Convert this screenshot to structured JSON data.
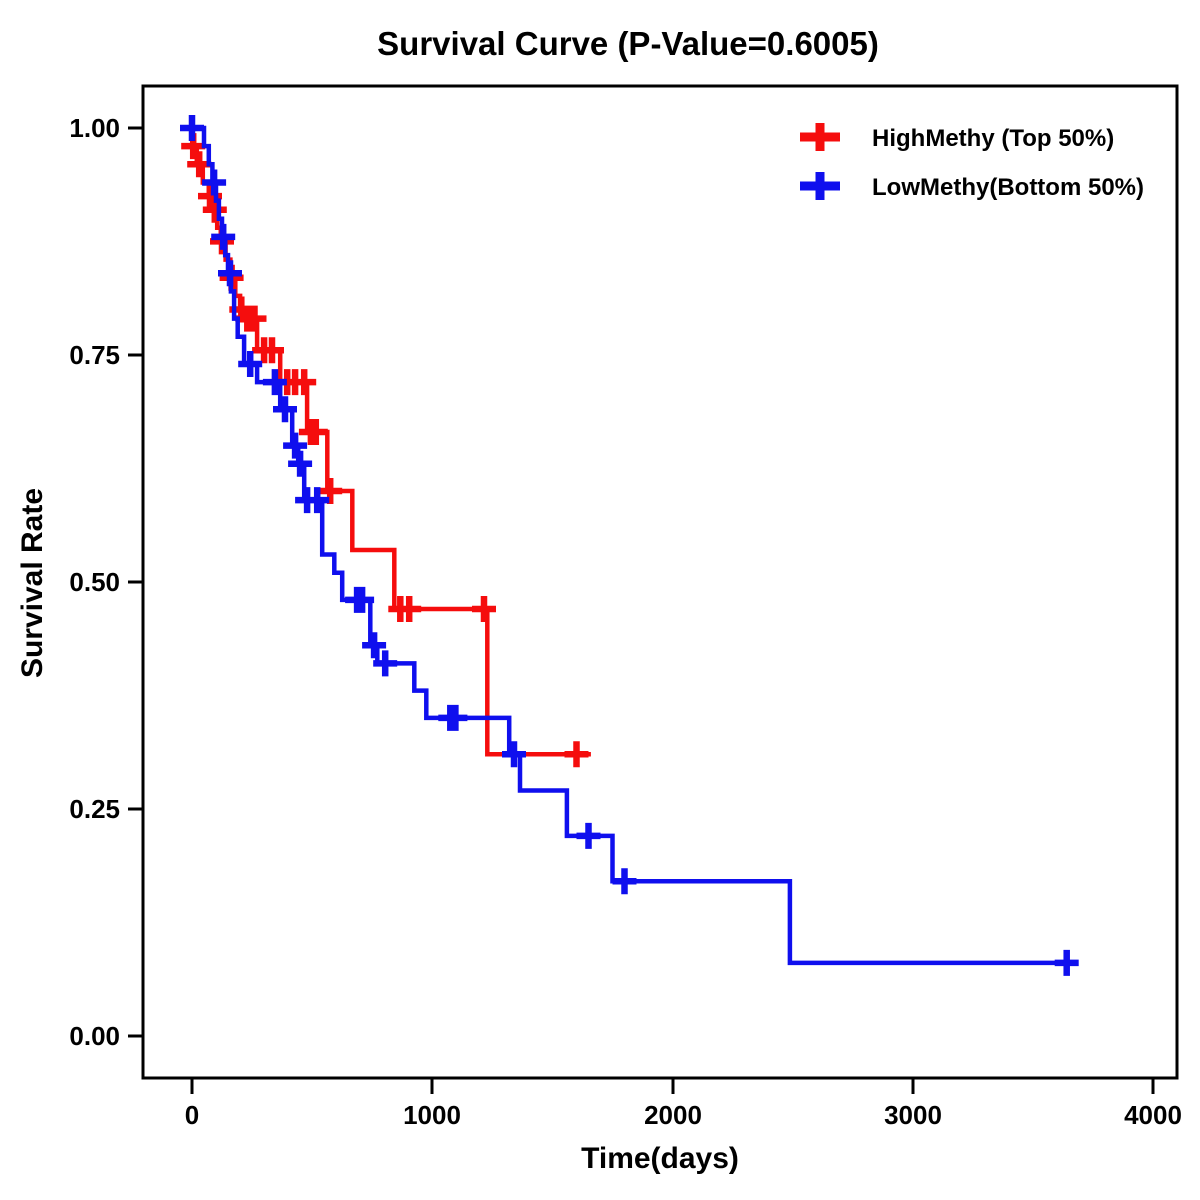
{
  "chart_data": {
    "type": "line",
    "subtype": "kaplan-meier-step",
    "title": "Survival Curve (P-Value=0.6005)",
    "p_value": "0.6005",
    "xlabel": "Time(days)",
    "ylabel": "Survival Rate",
    "xlim": [
      0,
      4000
    ],
    "ylim": [
      0.0,
      1.0
    ],
    "grid": "off",
    "legend_position": "top-right-inside",
    "xtick_labels": [
      "0",
      "1000",
      "2000",
      "3000",
      "4000"
    ],
    "xtick_values": [
      0,
      1000,
      2000,
      3000,
      4000
    ],
    "ytick_labels": [
      "1.00",
      "0.75",
      "0.50",
      "0.25",
      "0.00"
    ],
    "ytick_values": [
      1.0,
      0.75,
      0.5,
      0.25,
      0.0
    ],
    "series": [
      {
        "name": "HighMethy (Top 50%)",
        "color": "#f50d0d",
        "marker": "plus-censor",
        "steps": [
          [
            0,
            0.98
          ],
          [
            20,
            0.96
          ],
          [
            45,
            0.94
          ],
          [
            70,
            0.925
          ],
          [
            90,
            0.91
          ],
          [
            105,
            0.89
          ],
          [
            120,
            0.875
          ],
          [
            140,
            0.855
          ],
          [
            160,
            0.835
          ],
          [
            180,
            0.815
          ],
          [
            200,
            0.8
          ],
          [
            225,
            0.79
          ],
          [
            271,
            0.755
          ],
          [
            367,
            0.72
          ],
          [
            479,
            0.665
          ],
          [
            563,
            0.6
          ],
          [
            667,
            0.535
          ],
          [
            842,
            0.47
          ],
          [
            1229,
            0.31
          ]
        ],
        "end_time": 1660,
        "censors": [
          [
            5,
            0.98
          ],
          [
            30,
            0.96
          ],
          [
            75,
            0.925
          ],
          [
            95,
            0.91
          ],
          [
            125,
            0.875
          ],
          [
            165,
            0.835
          ],
          [
            205,
            0.8
          ],
          [
            230,
            0.79
          ],
          [
            245,
            0.79
          ],
          [
            260,
            0.79
          ],
          [
            300,
            0.755
          ],
          [
            333,
            0.755
          ],
          [
            396,
            0.72
          ],
          [
            429,
            0.72
          ],
          [
            467,
            0.72
          ],
          [
            495,
            0.665
          ],
          [
            515,
            0.665
          ],
          [
            575,
            0.6
          ],
          [
            867,
            0.47
          ],
          [
            904,
            0.47
          ],
          [
            1215,
            0.47
          ],
          [
            1600,
            0.31
          ]
        ]
      },
      {
        "name": "LowMethy(Bottom 50%)",
        "color": "#0f0fee",
        "marker": "plus-censor",
        "steps": [
          [
            0,
            1.0
          ],
          [
            50,
            0.98
          ],
          [
            70,
            0.96
          ],
          [
            85,
            0.94
          ],
          [
            100,
            0.92
          ],
          [
            112,
            0.9
          ],
          [
            125,
            0.88
          ],
          [
            138,
            0.86
          ],
          [
            150,
            0.84
          ],
          [
            162,
            0.82
          ],
          [
            175,
            0.79
          ],
          [
            190,
            0.77
          ],
          [
            217,
            0.74
          ],
          [
            271,
            0.72
          ],
          [
            367,
            0.69
          ],
          [
            417,
            0.65
          ],
          [
            442,
            0.63
          ],
          [
            467,
            0.59
          ],
          [
            542,
            0.53
          ],
          [
            592,
            0.51
          ],
          [
            625,
            0.48
          ],
          [
            742,
            0.43
          ],
          [
            771,
            0.41
          ],
          [
            925,
            0.38
          ],
          [
            975,
            0.35
          ],
          [
            1320,
            0.31
          ],
          [
            1365,
            0.27
          ],
          [
            1560,
            0.22
          ],
          [
            1750,
            0.17
          ],
          [
            2488,
            0.08
          ]
        ],
        "end_time": 3655,
        "censors": [
          [
            0,
            1.0
          ],
          [
            92,
            0.94
          ],
          [
            130,
            0.88
          ],
          [
            158,
            0.84
          ],
          [
            242,
            0.74
          ],
          [
            345,
            0.72
          ],
          [
            387,
            0.69
          ],
          [
            429,
            0.65
          ],
          [
            450,
            0.63
          ],
          [
            479,
            0.59
          ],
          [
            521,
            0.59
          ],
          [
            687,
            0.48
          ],
          [
            708,
            0.48
          ],
          [
            758,
            0.43
          ],
          [
            804,
            0.41
          ],
          [
            1075,
            0.35
          ],
          [
            1096,
            0.35
          ],
          [
            1340,
            0.31
          ],
          [
            1650,
            0.22
          ],
          [
            1800,
            0.17
          ],
          [
            3640,
            0.08
          ]
        ]
      }
    ]
  }
}
